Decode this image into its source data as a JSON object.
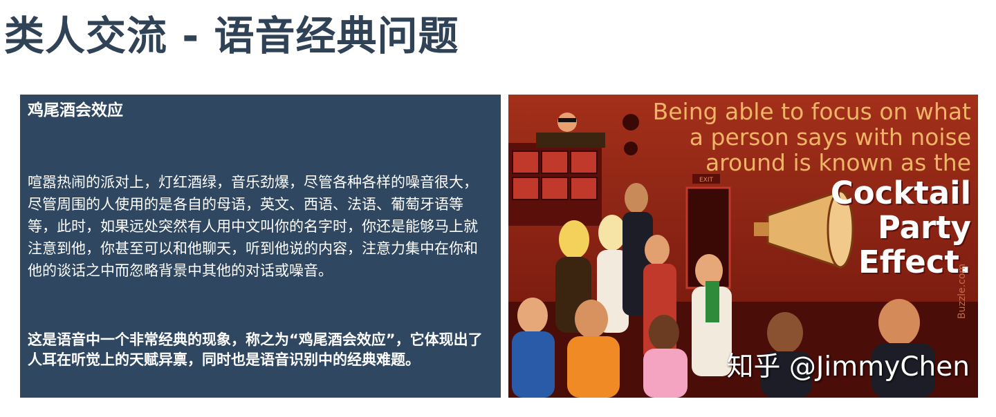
{
  "slide": {
    "title": "类人交流 - 语音经典问题"
  },
  "panel": {
    "heading": "鸡尾酒会效应",
    "body": "喧嚣热闹的派对上，灯红酒绿，音乐劲爆，尽管各种各样的噪音很大，尽管周围的人使用的是各自的母语，英文、西语、法语、葡萄牙语等等，此时，如果远处突然有人用中文叫你的名字时，你还是能够马上就注意到他，你甚至可以和他聊天，听到他说的内容，注意力集中在你和他的谈话之中而忽略背景中其他的对话或噪音。",
    "conclusion": "这是语音中一个非常经典的现象，称之为“鸡尾酒会效应”，它体现出了人耳在听觉上的天赋异禀，同时也是语音识别中的经典难题。"
  },
  "illustration": {
    "caption_lines": [
      "Being able to focus on what",
      "a person says with noise",
      "around is known as the"
    ],
    "effect_lines": [
      "Cocktail",
      "Party",
      "Effect."
    ],
    "exit_sign": "EXIT",
    "source": "Buzzle.com",
    "watermark": "知乎 @JimmyChen"
  }
}
